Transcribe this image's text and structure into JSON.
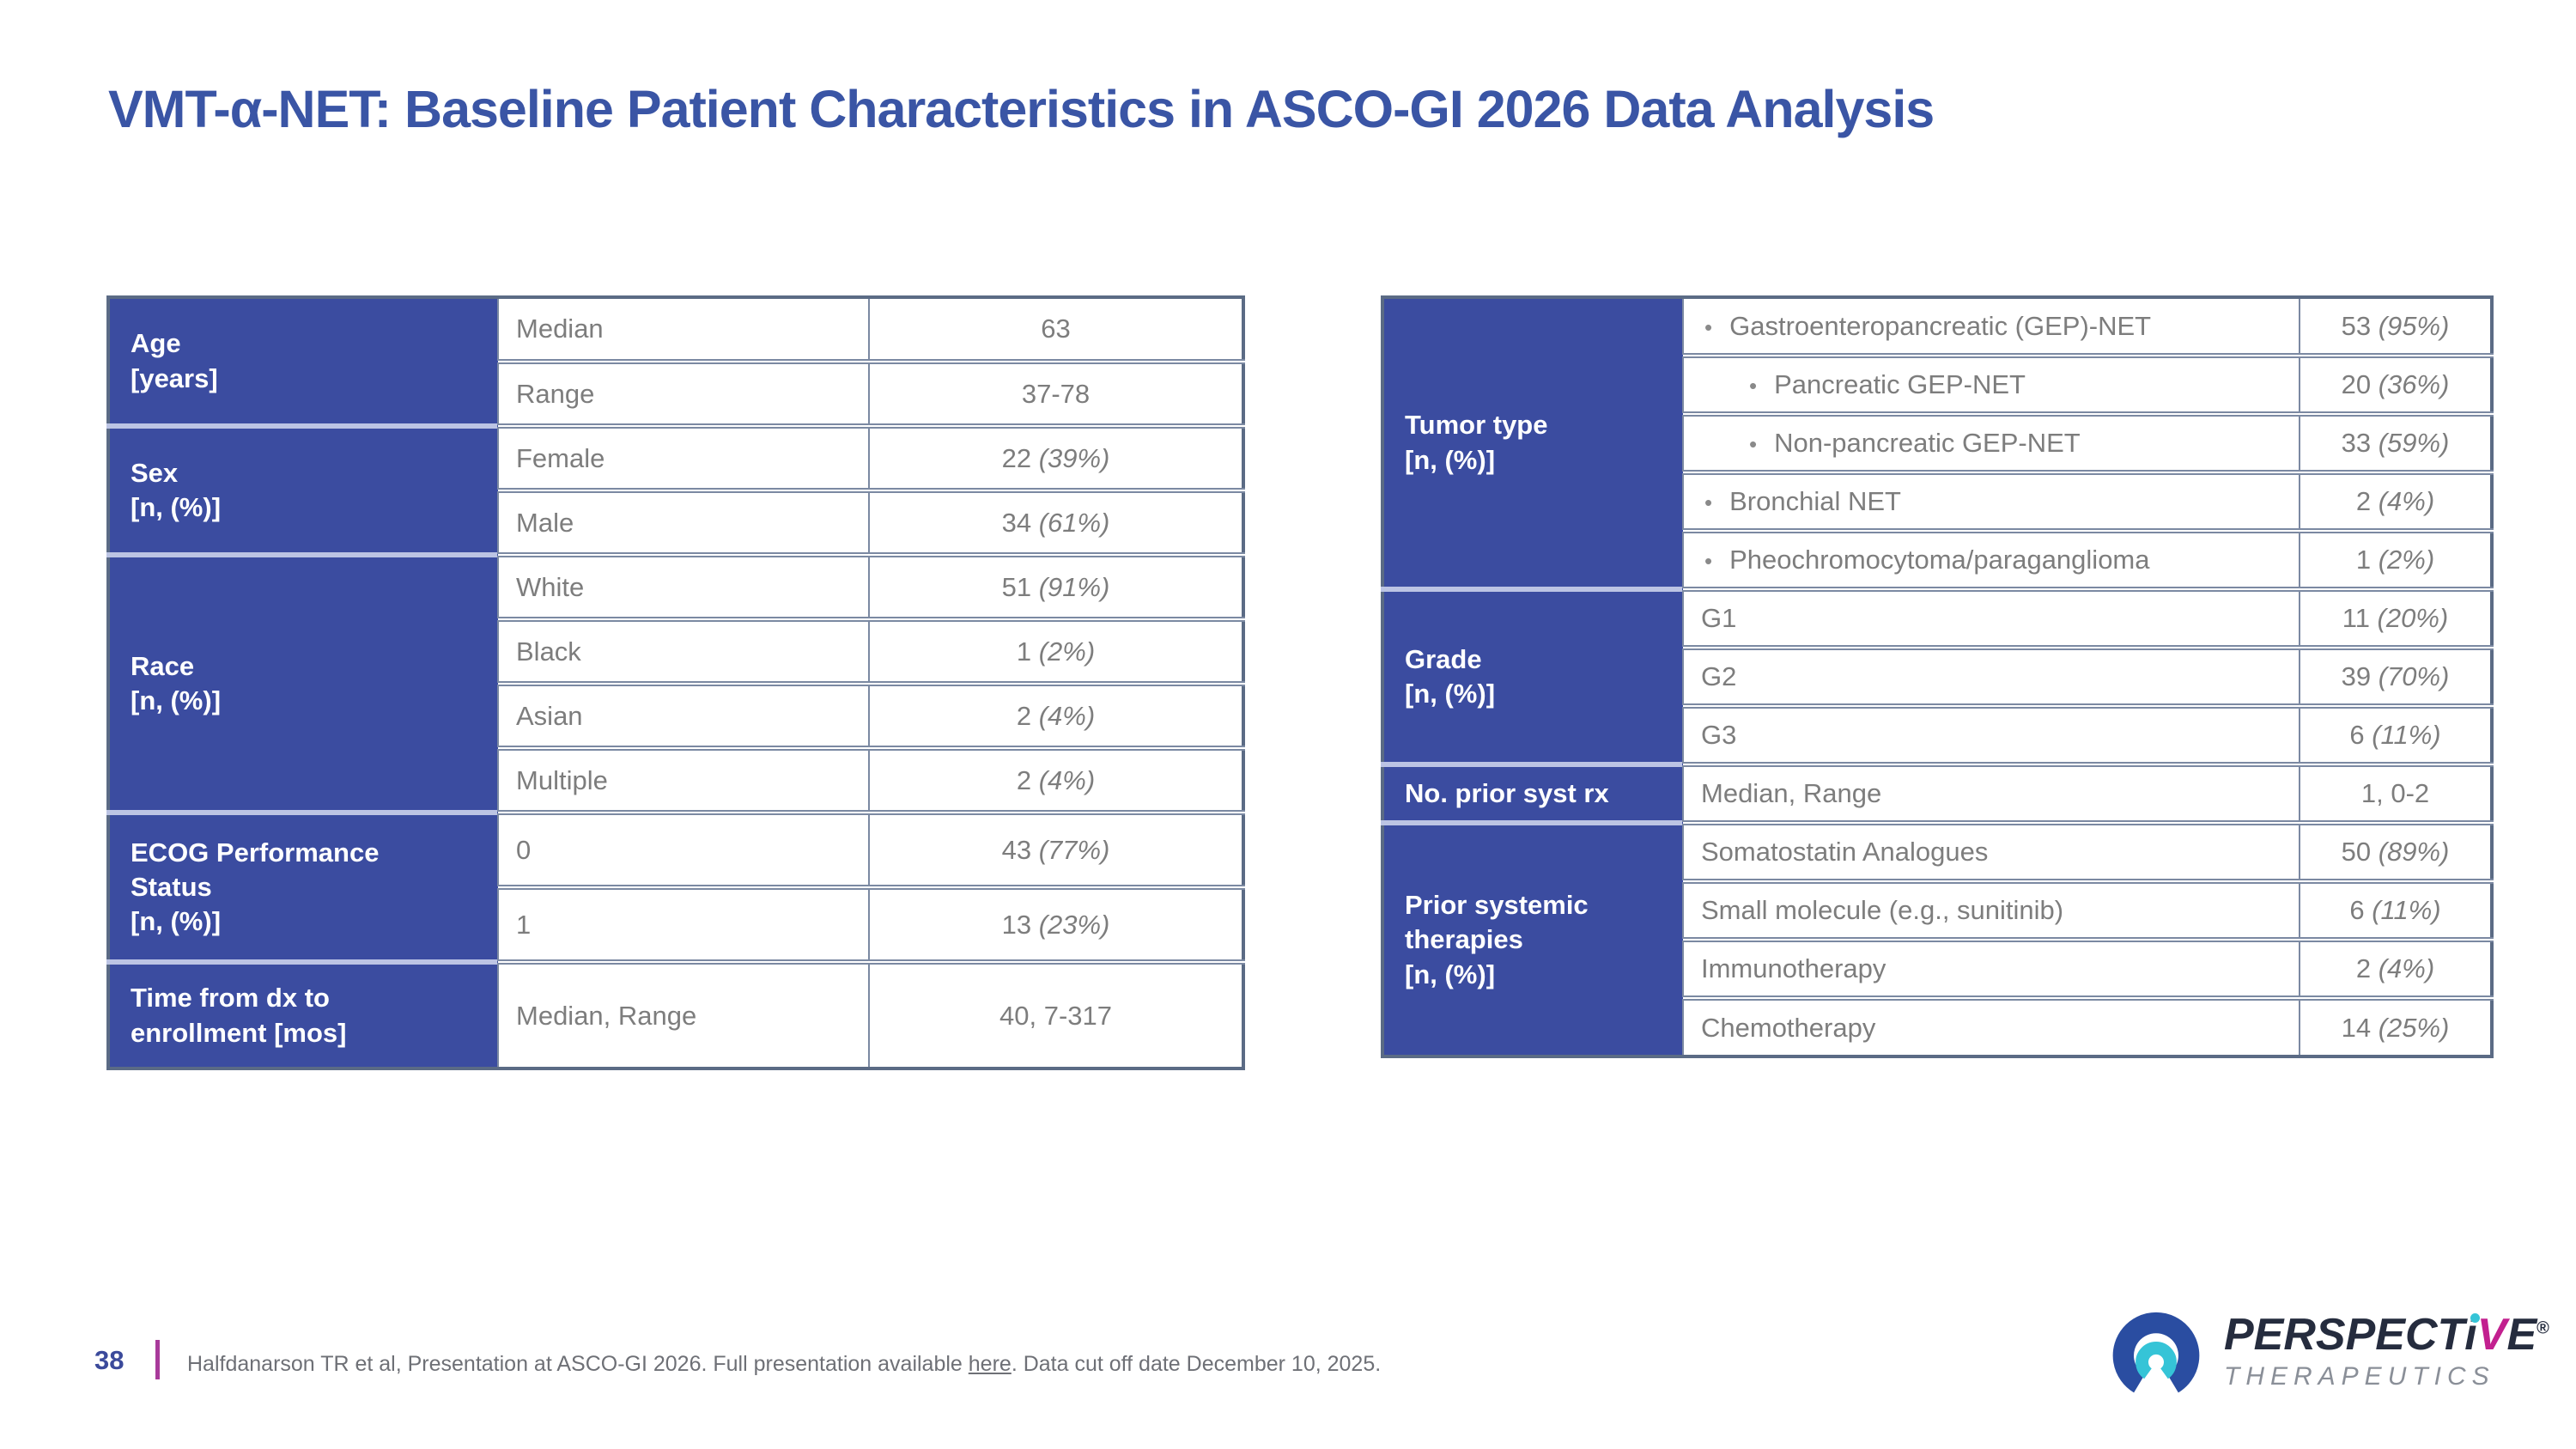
{
  "title": "VMT-α-NET: Baseline Patient Characteristics in ASCO-GI 2026 Data Analysis",
  "colors": {
    "header_blue": "#3b4ca0",
    "title_blue": "#3a55a5",
    "border": "#7b89a2",
    "border_outer": "#5b6b85",
    "blue_sep": "#bcc4e4",
    "text_gray": "#7d7d7d",
    "accent_magenta": "#a83a9a",
    "page_num_blue": "#3b4a9b",
    "footer_text": "#6e7076",
    "logo_navy": "#252c3e",
    "logo_magenta": "#c2208f",
    "logo_teal": "#35c4d7",
    "logo_blue": "#2a4da1",
    "logo_gray": "#8a8f98"
  },
  "left_table": {
    "groups": [
      {
        "label_lines": [
          "Age",
          "[years]"
        ],
        "rows": [
          {
            "label": "Median",
            "n": "63",
            "pct": ""
          },
          {
            "label": "Range",
            "n": "37-78",
            "pct": ""
          }
        ]
      },
      {
        "label_lines": [
          "Sex",
          "[n, (%)]"
        ],
        "rows": [
          {
            "label": "Female",
            "n": "22",
            "pct": "(39%)"
          },
          {
            "label": "Male",
            "n": "34",
            "pct": "(61%)"
          }
        ]
      },
      {
        "label_lines": [
          "Race",
          "[n, (%)]"
        ],
        "rows": [
          {
            "label": "White",
            "n": "51",
            "pct": "(91%)"
          },
          {
            "label": "Black",
            "n": "1",
            "pct": "(2%)"
          },
          {
            "label": "Asian",
            "n": "2",
            "pct": "(4%)"
          },
          {
            "label": "Multiple",
            "n": "2",
            "pct": "(4%)"
          }
        ]
      },
      {
        "label_lines": [
          "ECOG Performance",
          "Status",
          "[n, (%)]"
        ],
        "rows": [
          {
            "label": "0",
            "n": "43",
            "pct": "(77%)"
          },
          {
            "label": "1",
            "n": "13",
            "pct": "(23%)"
          }
        ]
      },
      {
        "label_lines": [
          "Time from dx to",
          "enrollment [mos]"
        ],
        "rows": [
          {
            "label": "Median, Range",
            "n": "40, 7-317",
            "pct": ""
          }
        ]
      }
    ]
  },
  "right_table": {
    "groups": [
      {
        "label_lines": [
          "Tumor type",
          "[n, (%)]"
        ],
        "rows": [
          {
            "indent": 1,
            "label": "Gastroenteropancreatic (GEP)-NET",
            "n": "53",
            "pct": "(95%)"
          },
          {
            "indent": 2,
            "label": "Pancreatic GEP-NET",
            "n": "20",
            "pct": "(36%)"
          },
          {
            "indent": 2,
            "label": "Non-pancreatic GEP-NET",
            "n": "33",
            "pct": "(59%)"
          },
          {
            "indent": 1,
            "label": "Bronchial NET",
            "n": "2",
            "pct": "(4%)"
          },
          {
            "indent": 1,
            "label": "Pheochromocytoma/paraganglioma",
            "n": "1",
            "pct": "(2%)"
          }
        ]
      },
      {
        "label_lines": [
          "Grade",
          "[n, (%)]"
        ],
        "rows": [
          {
            "label": "G1",
            "n": "11",
            "pct": "(20%)"
          },
          {
            "label": "G2",
            "n": "39",
            "pct": "(70%)"
          },
          {
            "label": "G3",
            "n": "6",
            "pct": "(11%)"
          }
        ]
      },
      {
        "label_lines": [
          "No. prior syst rx"
        ],
        "rows": [
          {
            "label": "Median, Range",
            "n": "1, 0-2",
            "pct": ""
          }
        ]
      },
      {
        "label_lines": [
          "Prior systemic",
          "therapies",
          "[n, (%)]"
        ],
        "rows": [
          {
            "label": "Somatostatin Analogues",
            "n": "50",
            "pct": "(89%)"
          },
          {
            "label": "Small molecule (e.g., sunitinib)",
            "n": "6",
            "pct": "(11%)"
          },
          {
            "label": "Immunotherapy",
            "n": "2",
            "pct": "(4%)"
          },
          {
            "label": "Chemotherapy",
            "n": "14",
            "pct": "(25%)"
          }
        ]
      }
    ]
  },
  "footer": {
    "page_number": "38",
    "citation_prefix": "Halfdanarson TR et al, Presentation at ASCO-GI 2026. Full presentation available ",
    "link_text": "here",
    "citation_suffix": ". Data cut off date December 10, 2025."
  },
  "logo": {
    "brand_pre": "PERSPECT",
    "brand_i": "i",
    "brand_v": "V",
    "brand_post": "E",
    "registered": "®",
    "subtitle": "THERAPEUTICS"
  }
}
